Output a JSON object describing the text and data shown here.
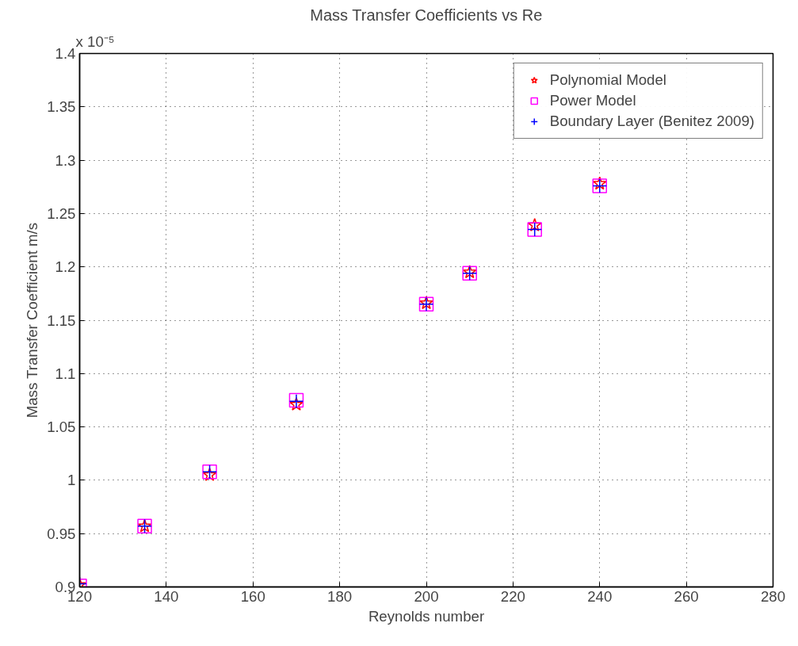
{
  "chart_data": {
    "type": "scatter",
    "title": "Mass Transfer Coefficients vs Re",
    "xlabel": "Reynolds number",
    "ylabel": "Mass Transfer Coefficient m/s",
    "annotations": [
      "x 10⁻⁵"
    ],
    "x": [
      120,
      135,
      150,
      170,
      200,
      210,
      225,
      240
    ],
    "series": [
      {
        "name": "Polynomial Model",
        "color": "#ff0000",
        "marker": "star",
        "values": [
          0.902,
          0.957,
          1.005,
          1.071,
          1.166,
          1.195,
          1.239,
          1.278
        ]
      },
      {
        "name": "Power Model",
        "color": "#ff00ff",
        "marker": "square",
        "values": [
          0.901,
          0.957,
          1.008,
          1.075,
          1.165,
          1.194,
          1.235,
          1.276
        ]
      },
      {
        "name": "Boundary Layer (Benitez 2009)",
        "color": "#0000ff",
        "marker": "cross",
        "values": [
          0.903,
          0.957,
          1.008,
          1.074,
          1.165,
          1.194,
          1.235,
          1.276
        ]
      }
    ],
    "xlim": [
      120,
      280
    ],
    "ylim": [
      0.9,
      1.4
    ],
    "xticks": [
      120,
      140,
      160,
      180,
      200,
      220,
      240,
      260,
      280
    ],
    "yticks": [
      0.9,
      0.95,
      1,
      1.05,
      1.1,
      1.15,
      1.2,
      1.25,
      1.3,
      1.35,
      1.4
    ],
    "grid": true,
    "legend": "top right",
    "line_style": "none"
  }
}
